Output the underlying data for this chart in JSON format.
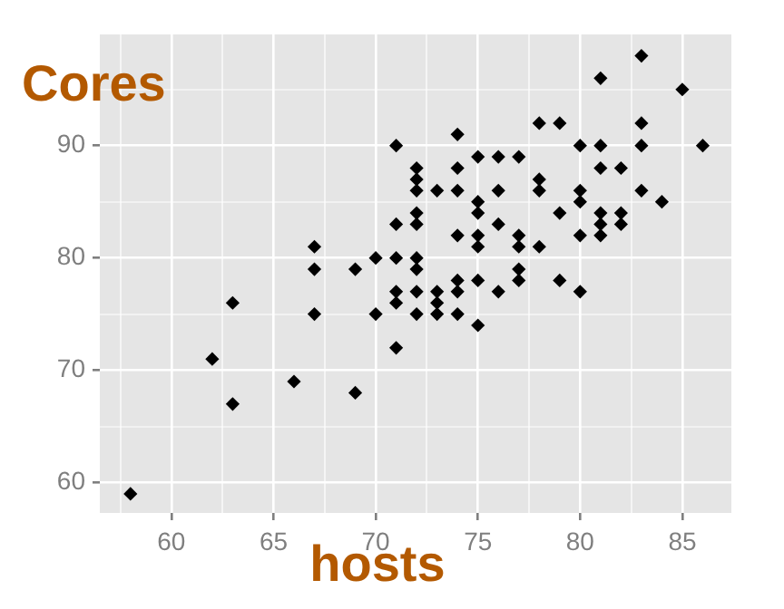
{
  "chart_data": {
    "type": "scatter",
    "xlabel": "hosts",
    "ylabel": "Cores",
    "xlim": [
      56.5,
      87.4
    ],
    "ylim": [
      57.3,
      99.9
    ],
    "xticks": [
      {
        "value": 57.5,
        "label": null
      },
      60,
      {
        "value": 62.5,
        "label": null
      },
      65,
      {
        "value": 67.5,
        "label": null
      },
      70,
      {
        "value": 72.5,
        "label": null
      },
      75,
      {
        "value": 77.5,
        "label": null
      },
      80,
      {
        "value": 82.5,
        "label": null
      },
      85
    ],
    "yticks": [
      60,
      {
        "value": 65,
        "label": null
      },
      70,
      {
        "value": 75,
        "label": null
      },
      80,
      {
        "value": 85,
        "label": null
      },
      90,
      {
        "value": 95,
        "label": null
      }
    ],
    "grid": true,
    "marker": "diamond",
    "legend": false,
    "series": [
      {
        "color": "#000000",
        "x": [
          58,
          62,
          63,
          63,
          66,
          67,
          67,
          67,
          69,
          69,
          70,
          70,
          71,
          71,
          71,
          71,
          71,
          71,
          72,
          72,
          72,
          72,
          72,
          72,
          72,
          72,
          72,
          73,
          73,
          73,
          73,
          74,
          74,
          74,
          74,
          74,
          74,
          74,
          75,
          75,
          75,
          75,
          75,
          75,
          75,
          76,
          76,
          76,
          76,
          77,
          77,
          77,
          77,
          77,
          78,
          78,
          78,
          78,
          79,
          79,
          79,
          80,
          80,
          80,
          80,
          80,
          81,
          81,
          81,
          81,
          81,
          81,
          82,
          82,
          82,
          83,
          83,
          83,
          83,
          84,
          85,
          86
        ],
        "values": [
          59,
          71,
          76,
          67,
          69,
          81,
          79,
          75,
          79,
          68,
          80,
          75,
          90,
          83,
          80,
          77,
          76,
          72,
          88,
          87,
          86,
          84,
          83,
          80,
          79,
          77,
          75,
          86,
          77,
          76,
          75,
          91,
          88,
          86,
          82,
          78,
          77,
          75,
          89,
          85,
          84,
          82,
          81,
          78,
          74,
          89,
          86,
          83,
          77,
          89,
          82,
          81,
          79,
          78,
          92,
          87,
          86,
          81,
          92,
          84,
          78,
          90,
          86,
          85,
          82,
          77,
          96,
          90,
          88,
          84,
          83,
          82,
          88,
          84,
          83,
          98,
          92,
          90,
          86,
          85,
          95,
          90
        ]
      }
    ]
  }
}
